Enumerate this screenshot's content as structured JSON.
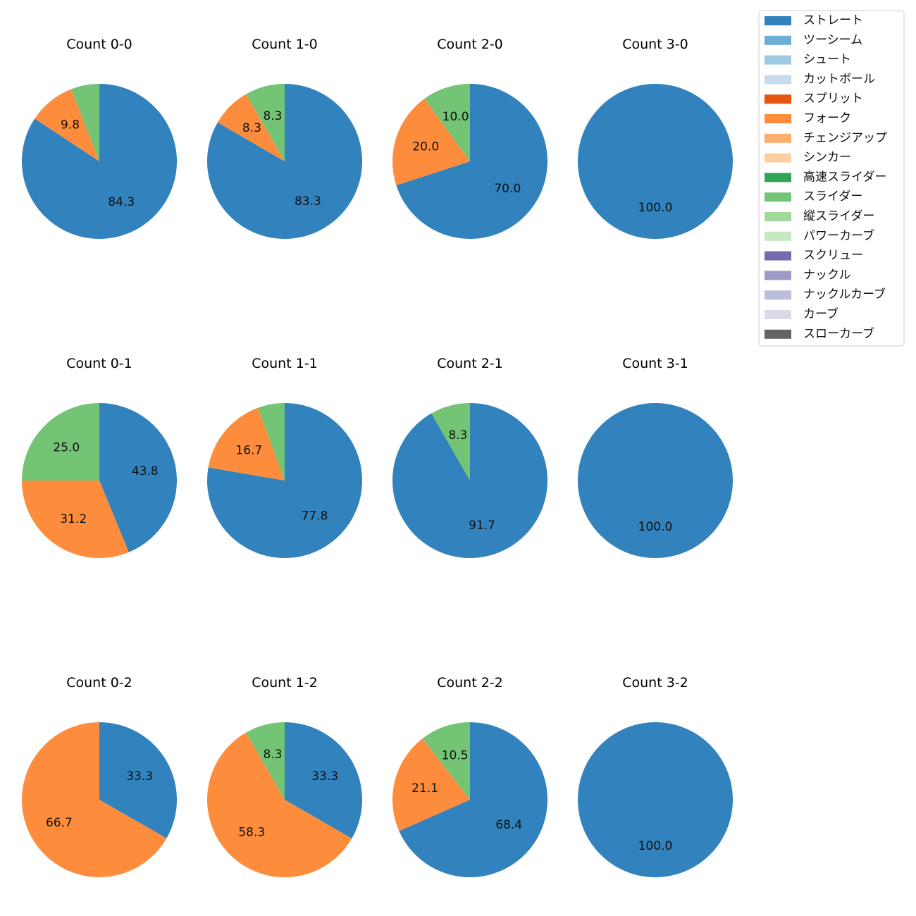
{
  "chart_data": {
    "type": "pie",
    "start_angle": "top",
    "direction": "clockwise",
    "legend": {
      "placement": "top-right",
      "entries": [
        {
          "name": "ストレート",
          "color": "#3182bd"
        },
        {
          "name": "ツーシーム",
          "color": "#6baed6"
        },
        {
          "name": "シュート",
          "color": "#9ecae1"
        },
        {
          "name": "カットボール",
          "color": "#c6dbef"
        },
        {
          "name": "スプリット",
          "color": "#e6550d"
        },
        {
          "name": "フォーク",
          "color": "#fd8d3c"
        },
        {
          "name": "チェンジアップ",
          "color": "#fdae6b"
        },
        {
          "name": "シンカー",
          "color": "#fdd0a2"
        },
        {
          "name": "高速スライダー",
          "color": "#31a354"
        },
        {
          "name": "スライダー",
          "color": "#74c476"
        },
        {
          "name": "縦スライダー",
          "color": "#a1d99b"
        },
        {
          "name": "パワーカーブ",
          "color": "#c7e9c0"
        },
        {
          "name": "スクリュー",
          "color": "#756bb1"
        },
        {
          "name": "ナックル",
          "color": "#9e9ac8"
        },
        {
          "name": "ナックルカーブ",
          "color": "#bcbddc"
        },
        {
          "name": "カーブ",
          "color": "#dadaeb"
        },
        {
          "name": "スローカーブ",
          "color": "#636363"
        }
      ]
    },
    "pies": [
      {
        "title": "Count 0-0",
        "slices": [
          {
            "name": "ストレート",
            "value": 84.3,
            "label": "84.3"
          },
          {
            "name": "フォーク",
            "value": 9.8,
            "label": "9.8"
          },
          {
            "name": "スライダー",
            "value": 5.9,
            "label": null
          }
        ]
      },
      {
        "title": "Count 1-0",
        "slices": [
          {
            "name": "ストレート",
            "value": 83.3,
            "label": "83.3"
          },
          {
            "name": "フォーク",
            "value": 8.3,
            "label": "8.3"
          },
          {
            "name": "スライダー",
            "value": 8.3,
            "label": "8.3"
          }
        ]
      },
      {
        "title": "Count 2-0",
        "slices": [
          {
            "name": "ストレート",
            "value": 70.0,
            "label": "70.0"
          },
          {
            "name": "フォーク",
            "value": 20.0,
            "label": "20.0"
          },
          {
            "name": "スライダー",
            "value": 10.0,
            "label": "10.0"
          }
        ]
      },
      {
        "title": "Count 3-0",
        "slices": [
          {
            "name": "ストレート",
            "value": 100.0,
            "label": "100.0"
          }
        ]
      },
      {
        "title": "Count 0-1",
        "slices": [
          {
            "name": "ストレート",
            "value": 43.8,
            "label": "43.8"
          },
          {
            "name": "フォーク",
            "value": 31.2,
            "label": "31.2"
          },
          {
            "name": "スライダー",
            "value": 25.0,
            "label": "25.0"
          }
        ]
      },
      {
        "title": "Count 1-1",
        "slices": [
          {
            "name": "ストレート",
            "value": 77.8,
            "label": "77.8"
          },
          {
            "name": "フォーク",
            "value": 16.7,
            "label": "16.7"
          },
          {
            "name": "スライダー",
            "value": 5.6,
            "label": null
          }
        ]
      },
      {
        "title": "Count 2-1",
        "slices": [
          {
            "name": "ストレート",
            "value": 91.7,
            "label": "91.7"
          },
          {
            "name": "スライダー",
            "value": 8.3,
            "label": "8.3"
          }
        ]
      },
      {
        "title": "Count 3-1",
        "slices": [
          {
            "name": "ストレート",
            "value": 100.0,
            "label": "100.0"
          }
        ]
      },
      {
        "title": "Count 0-2",
        "slices": [
          {
            "name": "ストレート",
            "value": 33.3,
            "label": "33.3"
          },
          {
            "name": "フォーク",
            "value": 66.7,
            "label": "66.7"
          }
        ]
      },
      {
        "title": "Count 1-2",
        "slices": [
          {
            "name": "ストレート",
            "value": 33.3,
            "label": "33.3"
          },
          {
            "name": "フォーク",
            "value": 58.3,
            "label": "58.3"
          },
          {
            "name": "スライダー",
            "value": 8.3,
            "label": "8.3"
          }
        ]
      },
      {
        "title": "Count 2-2",
        "slices": [
          {
            "name": "ストレート",
            "value": 68.4,
            "label": "68.4"
          },
          {
            "name": "フォーク",
            "value": 21.1,
            "label": "21.1"
          },
          {
            "name": "スライダー",
            "value": 10.5,
            "label": "10.5"
          }
        ]
      },
      {
        "title": "Count 3-2",
        "slices": [
          {
            "name": "ストレート",
            "value": 100.0,
            "label": "100.0"
          }
        ]
      }
    ]
  }
}
